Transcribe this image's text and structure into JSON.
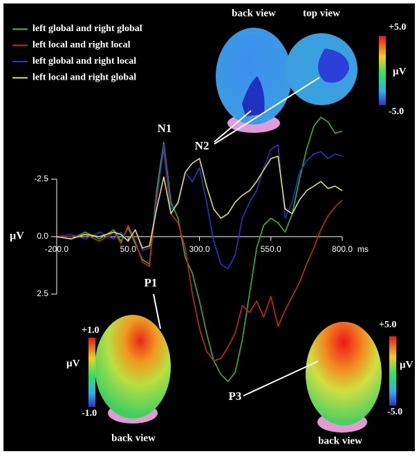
{
  "chart_data": {
    "type": "line",
    "x": [
      -200,
      -150,
      -100,
      -50,
      0,
      25,
      50,
      75,
      100,
      125,
      150,
      175,
      200,
      225,
      250,
      275,
      300,
      325,
      350,
      375,
      400,
      425,
      450,
      475,
      500,
      525,
      550,
      575,
      600,
      625,
      650,
      675,
      700,
      725,
      750,
      775,
      800
    ],
    "xlim": [
      -200,
      800
    ],
    "xticks": [
      {
        "value": -200,
        "label": "-200.0"
      },
      {
        "value": 50,
        "label": "50.0"
      },
      {
        "value": 300,
        "label": "300.0"
      },
      {
        "value": 550,
        "label": "550.0"
      },
      {
        "value": 800,
        "label": "800.0"
      }
    ],
    "x_unit": "ms",
    "ylim": [
      -5.5,
      6.5
    ],
    "y_inverted": true,
    "yticks": [
      -2.5,
      {
        "value": 0,
        "label": "0.0"
      },
      2.5
    ],
    "y_label": "µV",
    "legend": "top-left",
    "series": [
      {
        "name": "left global and right global",
        "color": "#2fb82f",
        "values": [
          0.0,
          0.1,
          -0.2,
          0.1,
          -0.3,
          0.2,
          -0.4,
          0.3,
          1.0,
          1.2,
          -2.0,
          -4.1,
          -1.5,
          -0.8,
          0.9,
          1.6,
          2.8,
          4.2,
          5.4,
          6.0,
          6.3,
          5.9,
          4.5,
          2.5,
          0.5,
          -0.5,
          -0.8,
          -0.6,
          -0.2,
          -1.0,
          -2.5,
          -3.8,
          -4.8,
          -5.2,
          -5.0,
          -4.5,
          -4.6
        ]
      },
      {
        "name": "left local and right local",
        "color": "#c8261e",
        "values": [
          0.0,
          0.0,
          -0.1,
          0.2,
          -0.2,
          0.3,
          -0.5,
          0.2,
          1.1,
          1.3,
          -1.8,
          -3.8,
          -1.0,
          -0.6,
          0.5,
          2.5,
          4.0,
          5.0,
          5.4,
          5.3,
          4.8,
          4.2,
          3.0,
          3.3,
          2.8,
          3.5,
          2.6,
          3.9,
          3.2,
          2.6,
          2.0,
          1.2,
          0.5,
          -0.3,
          -0.9,
          -1.3,
          -1.6
        ]
      },
      {
        "name": "left global and right local",
        "color": "#2634cc",
        "values": [
          0.0,
          -0.1,
          0.1,
          -0.2,
          0.1,
          -0.2,
          0.2,
          -0.3,
          0.6,
          0.5,
          -1.5,
          -4.0,
          -1.2,
          -1.4,
          -2.8,
          -2.4,
          -3.0,
          -1.5,
          0.2,
          1.2,
          1.4,
          0.8,
          -0.8,
          -1.5,
          -2.0,
          -3.0,
          -3.8,
          -4.0,
          -0.8,
          -1.5,
          -2.8,
          -3.3,
          -3.6,
          -3.7,
          -3.4,
          -3.6,
          -3.5
        ]
      },
      {
        "name": "left local and right global",
        "color": "#e2e24c",
        "values": [
          0.0,
          0.1,
          -0.1,
          0.0,
          -0.2,
          -0.1,
          0.2,
          -0.3,
          0.5,
          0.4,
          -1.2,
          -2.6,
          -1.0,
          -1.5,
          -2.8,
          -3.2,
          -3.4,
          -2.2,
          -1.2,
          -0.8,
          -1.0,
          -1.5,
          -1.8,
          -2.0,
          -2.4,
          -2.9,
          -3.4,
          -3.5,
          -1.2,
          -1.0,
          -1.6,
          -2.0,
          -2.2,
          -2.4,
          -2.1,
          -2.2,
          -2.0
        ]
      }
    ],
    "annotations": [
      "N1",
      "N2",
      "P1",
      "P3"
    ]
  },
  "insets": [
    {
      "title": "back view"
    },
    {
      "title": "top view",
      "scale_max": "+5.0",
      "scale_min": "-5.0",
      "unit": "µV"
    },
    {
      "title": "back view",
      "scale_max": "+1.0",
      "scale_min": "-1.0",
      "unit": "µV"
    },
    {
      "title": "back view",
      "scale_max": "+5.0",
      "scale_min": "-5.0",
      "unit": "µV"
    }
  ]
}
